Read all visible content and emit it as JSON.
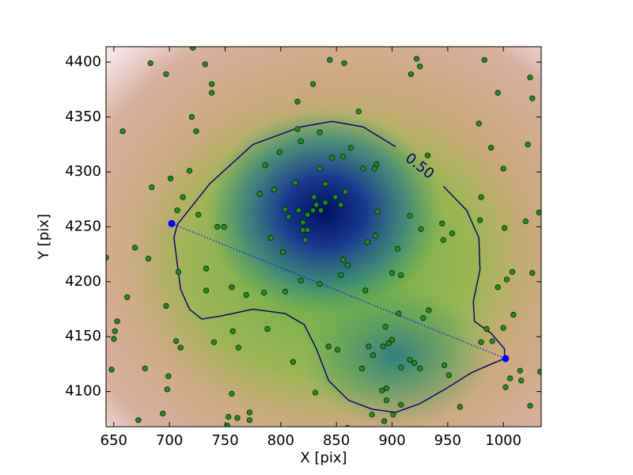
{
  "chart_data": {
    "type": "scatter",
    "xlabel": "X [pix]",
    "ylabel": "Y [pix]",
    "xlim": [
      643,
      1034
    ],
    "ylim": [
      4068,
      4414
    ],
    "xticks": [
      650,
      700,
      750,
      800,
      850,
      900,
      950,
      1000
    ],
    "yticks": [
      4100,
      4150,
      4200,
      4250,
      4300,
      4350,
      4400
    ],
    "color": "#1e8c1e",
    "x": [
      721,
      683,
      697,
      732,
      738,
      738,
      658,
      720,
      724,
      718,
      684,
      701,
      712,
      707,
      726,
      669,
      681,
      643,
      708,
      662,
      697,
      733,
      733,
      743,
      749,
      756,
      769,
      785,
      804,
      653,
      651,
      650,
      706,
      710,
      740,
      757,
      762,
      788,
      811,
      648,
      678,
      699,
      698,
      756,
      694,
      672,
      753,
      761,
      772,
      772,
      752,
      831,
      829,
      815,
      870,
      815,
      818,
      835,
      844,
      857,
      799,
      786,
      856,
      863,
      846,
      835,
      874,
      886,
      884,
      813,
      840,
      794,
      781,
      830,
      858,
      849,
      840,
      832,
      836,
      829,
      854,
      816,
      824,
      804,
      807,
      820,
      820,
      824,
      822,
      791,
      802,
      856,
      860,
      854,
      878,
      887,
      885,
      905,
      818,
      835,
      876,
      900,
      908,
      916,
      926,
      932,
      917,
      922,
      925,
      945,
      954,
      946,
      933,
      928,
      906,
      894,
      897,
      900,
      892,
      879,
      843,
      851,
      883,
      873,
      916,
      920,
      908,
      925,
      947,
      951,
      895,
      891,
      895,
      908,
      901,
      882,
      893,
      860,
      961,
      983,
      995,
      978,
      989,
      1000,
      1022,
      1024,
      1026,
      980,
      979,
      1001,
      1032,
      1020,
      1008,
      1003,
      995,
      1026,
      1009,
      985,
      1000,
      980,
      990,
      1015,
      1016,
      1006,
      1002,
      1033,
      1024
    ],
    "values": [
      4413,
      4399,
      4389,
      4398,
      4380,
      4372,
      4337,
      4350,
      4337,
      4301,
      4286,
      4294,
      4277,
      4265,
      4261,
      4231,
      4221,
      4222,
      4209,
      4186,
      4178,
      4212,
      4192,
      4250,
      4250,
      4195,
      4188,
      4190,
      4191,
      4164,
      4155,
      4148,
      4146,
      4140,
      4145,
      4155,
      4140,
      4157,
      4127,
      4120,
      4121,
      4114,
      4102,
      4098,
      4080,
      4074,
      4077,
      4076,
      4081,
      4074,
      4069,
      4099,
      4380,
      4364,
      4355,
      4339,
      4328,
      4336,
      4402,
      4399,
      4318,
      4306,
      4314,
      4322,
      4313,
      4303,
      4303,
      4307,
      4303,
      4290,
      4289,
      4284,
      4280,
      4277,
      4282,
      4277,
      4272,
      4270,
      4265,
      4265,
      4270,
      4265,
      4261,
      4266,
      4259,
      4254,
      4247,
      4247,
      4238,
      4240,
      4227,
      4220,
      4215,
      4206,
      4236,
      4264,
      4242,
      4230,
      4201,
      4198,
      4192,
      4208,
      4206,
      4260,
      4248,
      4315,
      4389,
      4403,
      4396,
      4253,
      4244,
      4238,
      4174,
      4167,
      4171,
      4159,
      4144,
      4147,
      4141,
      4141,
      4141,
      4138,
      4133,
      4121,
      4129,
      4126,
      4122,
      4121,
      4124,
      4115,
      4103,
      4101,
      4092,
      4088,
      4079,
      4079,
      4073,
      4067,
      4086,
      4402,
      4372,
      4344,
      4322,
      4303,
      4325,
      4386,
      4367,
      4277,
      4256,
      4249,
      4263,
      4255,
      4209,
      4202,
      4195,
      4208,
      4170,
      4157,
      4158,
      4145,
      4146,
      4119,
      4110,
      4112,
      4104,
      4118,
      4087
    ],
    "endpoints": {
      "x": [
        702,
        1002
      ],
      "values": [
        4253,
        4130
      ],
      "color": "#0000ff"
    },
    "contour": {
      "label": "0.50",
      "color": "#000066",
      "x": [
        707,
        736,
        775,
        818,
        846,
        874,
        903,
        null,
        946,
        967,
        978,
        979,
        973,
        974,
        989,
        1001,
        1001,
        989,
        971,
        949,
        925,
        903,
        882,
        861,
        843,
        832,
        821,
        804,
        775,
        747,
        729,
        718,
        710,
        704,
        707
      ],
      "values": [
        4252,
        4289,
        4325,
        4341,
        4346,
        4341,
        4323,
        null,
        4287,
        4265,
        4240,
        4211,
        4182,
        4164,
        4153,
        4139,
        4130,
        4125,
        4117,
        4103,
        4089,
        4081,
        4084,
        4092,
        4110,
        4139,
        4161,
        4171,
        4175,
        4169,
        4166,
        4175,
        4193,
        4240,
        4252
      ]
    }
  }
}
